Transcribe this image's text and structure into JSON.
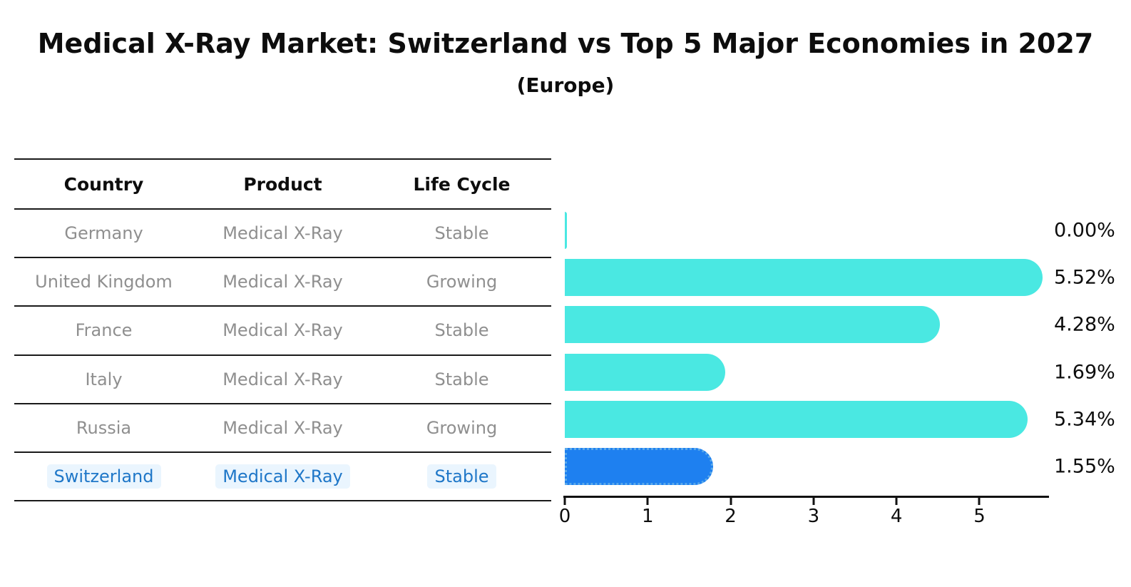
{
  "header": {
    "title": "Medical X-Ray Market: Switzerland vs Top 5 Major Economies in 2027",
    "subtitle": "(Europe)"
  },
  "table": {
    "columns": [
      "Country",
      "Product",
      "Life Cycle"
    ],
    "rows": [
      {
        "country": "Germany",
        "product": "Medical X-Ray",
        "life_cycle": "Stable",
        "highlight": false
      },
      {
        "country": "United Kingdom",
        "product": "Medical X-Ray",
        "life_cycle": "Growing",
        "highlight": false
      },
      {
        "country": "France",
        "product": "Medical X-Ray",
        "life_cycle": "Stable",
        "highlight": false
      },
      {
        "country": "Italy",
        "product": "Medical X-Ray",
        "life_cycle": "Stable",
        "highlight": false
      },
      {
        "country": "Russia",
        "product": "Medical X-Ray",
        "life_cycle": "Growing",
        "highlight": false
      },
      {
        "country": "Switzerland",
        "product": "Medical X-Ray",
        "life_cycle": "Stable",
        "highlight": true
      }
    ]
  },
  "chart_data": {
    "type": "bar",
    "orientation": "horizontal",
    "title": "Medical X-Ray Market: Switzerland vs Top 5 Major Economies in 2027 (Europe)",
    "categories": [
      "Germany",
      "United Kingdom",
      "France",
      "Italy",
      "Russia",
      "Switzerland"
    ],
    "values": [
      0.0,
      5.52,
      4.28,
      1.69,
      5.34,
      1.55
    ],
    "value_labels": [
      "0.00%",
      "5.52%",
      "4.28%",
      "1.69%",
      "5.34%",
      "1.55%"
    ],
    "xlabel": "",
    "ylabel": "",
    "xticks": [
      0,
      1,
      2,
      3,
      4,
      5
    ],
    "xlim": [
      0,
      5.83
    ],
    "grid": false,
    "legend": false,
    "highlight_category": "Switzerland"
  },
  "colors": {
    "bar_default": "#4AE8E2",
    "bar_highlight": "#1E80F0",
    "bar_highlight_border": "#5aa9ea",
    "highlight_text": "#1f77c8",
    "highlight_text_bg": "#eaf5fe",
    "table_text": "#8f8f8f",
    "line": "#1a1a1a"
  }
}
